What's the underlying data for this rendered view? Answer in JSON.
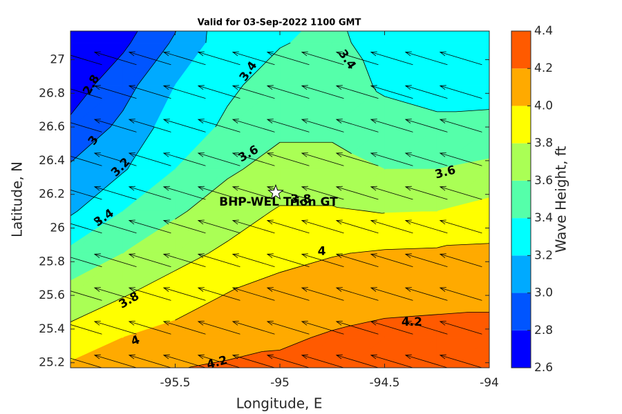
{
  "chart_data": {
    "type": "contour",
    "title": "Valid for 03-Sep-2022 1100 GMT",
    "xlabel": "Longitude, E",
    "ylabel": "Latitude, N",
    "colorbar_label": "Wave Height, ft",
    "xlim": [
      -96,
      -94
    ],
    "ylim": [
      25.17,
      27.17
    ],
    "xticks": [
      -95.5,
      -95,
      -94.5,
      -94
    ],
    "yticks": [
      25.2,
      25.4,
      25.6,
      25.8,
      26,
      26.2,
      26.4,
      26.6,
      26.8,
      27
    ],
    "levels": [
      2.6,
      2.8,
      3.0,
      3.2,
      3.4,
      3.6,
      3.8,
      4.0,
      4.2,
      4.4
    ],
    "colors": [
      "#0000ff",
      "#0055ff",
      "#00aaff",
      "#00ffff",
      "#55ffaa",
      "#aaff55",
      "#ffff00",
      "#ffaa00",
      "#ff5a00"
    ],
    "colorbar_ticks": [
      2.6,
      2.8,
      {
        "value": 3,
        "label": "3.0"
      },
      3.2,
      3.4,
      3.6,
      3.8,
      {
        "value": 4,
        "label": "4.0"
      },
      4.2,
      4.4
    ],
    "grid_x": [
      -96,
      -95.75,
      -95.5,
      -95.25,
      -95,
      -94.75,
      -94.5,
      -94.25,
      -94
    ],
    "grid_y": [
      25.1,
      25.35,
      25.6,
      25.85,
      26.1,
      26.35,
      26.6,
      26.85,
      27.1,
      27.35
    ],
    "z": [
      [
        4.1,
        4.15,
        4.23,
        4.26,
        4.27,
        4.3,
        4.33,
        4.34,
        4.33
      ],
      [
        3.87,
        4.0,
        4.07,
        4.13,
        4.17,
        4.22,
        4.25,
        4.26,
        4.26
      ],
      [
        3.68,
        3.79,
        3.9,
        4.01,
        4.06,
        4.1,
        4.14,
        4.15,
        4.16
      ],
      [
        3.45,
        3.6,
        3.73,
        3.84,
        3.95,
        3.99,
        4.02,
        4.03,
        4.04
      ],
      [
        3.17,
        3.4,
        3.57,
        3.7,
        3.82,
        3.82,
        3.79,
        3.8,
        3.87
      ],
      [
        3.03,
        3.18,
        3.4,
        3.57,
        3.67,
        3.67,
        3.6,
        3.6,
        3.65
      ],
      [
        2.84,
        3.05,
        3.3,
        3.43,
        3.56,
        3.56,
        3.48,
        3.44,
        3.45
      ],
      [
        2.7,
        2.92,
        3.2,
        3.37,
        3.47,
        3.5,
        3.37,
        3.33,
        3.33
      ],
      [
        2.6,
        2.76,
        3.03,
        3.32,
        3.39,
        3.44,
        3.33,
        3.3,
        3.3
      ],
      [
        2.55,
        2.65,
        2.9,
        3.3,
        3.37,
        3.4,
        3.3,
        3.28,
        3.28
      ]
    ],
    "contour_labels": [
      {
        "value": 2.8,
        "x": -95.9,
        "y": 26.85,
        "angle": -60
      },
      {
        "value": 3,
        "x": -95.89,
        "y": 26.52,
        "angle": -55
      },
      {
        "value": 3.2,
        "x": -95.76,
        "y": 26.36,
        "angle": -45
      },
      {
        "value": 3.4,
        "x": -95.84,
        "y": 26.06,
        "angle": -35
      },
      {
        "value": 3.4,
        "x": -95.15,
        "y": 26.93,
        "angle": -55
      },
      {
        "value": 3.4,
        "x": -94.68,
        "y": 27.0,
        "angle": 55
      },
      {
        "value": 3.6,
        "x": -95.15,
        "y": 26.44,
        "angle": -30
      },
      {
        "value": 3.6,
        "x": -94.21,
        "y": 26.33,
        "angle": -15
      },
      {
        "value": 3.8,
        "x": -94.9,
        "y": 26.17,
        "angle": 0
      },
      {
        "value": 3.8,
        "x": -95.72,
        "y": 25.57,
        "angle": -30
      },
      {
        "value": 4,
        "x": -94.8,
        "y": 25.86,
        "angle": 0
      },
      {
        "value": 4,
        "x": -95.69,
        "y": 25.33,
        "angle": -20
      },
      {
        "value": 4.2,
        "x": -94.37,
        "y": 25.44,
        "angle": 0
      },
      {
        "value": 4.2,
        "x": -95.3,
        "y": 25.2,
        "angle": -15
      }
    ],
    "vectors": {
      "x": [
        -95.85,
        -95.685,
        -95.52,
        -95.355,
        -95.19,
        -95.025,
        -94.86,
        -94.695,
        -94.53,
        -94.365,
        -94.2,
        -94.035
      ],
      "y": [
        25.17,
        25.37,
        25.57,
        25.77,
        25.97,
        26.17,
        26.37,
        26.57,
        26.77,
        26.97,
        27.17
      ],
      "u": -0.2,
      "v": 0.075
    },
    "site": {
      "name": "BHP-WEL Trion GT",
      "x": -95.02,
      "y": 26.21
    }
  }
}
